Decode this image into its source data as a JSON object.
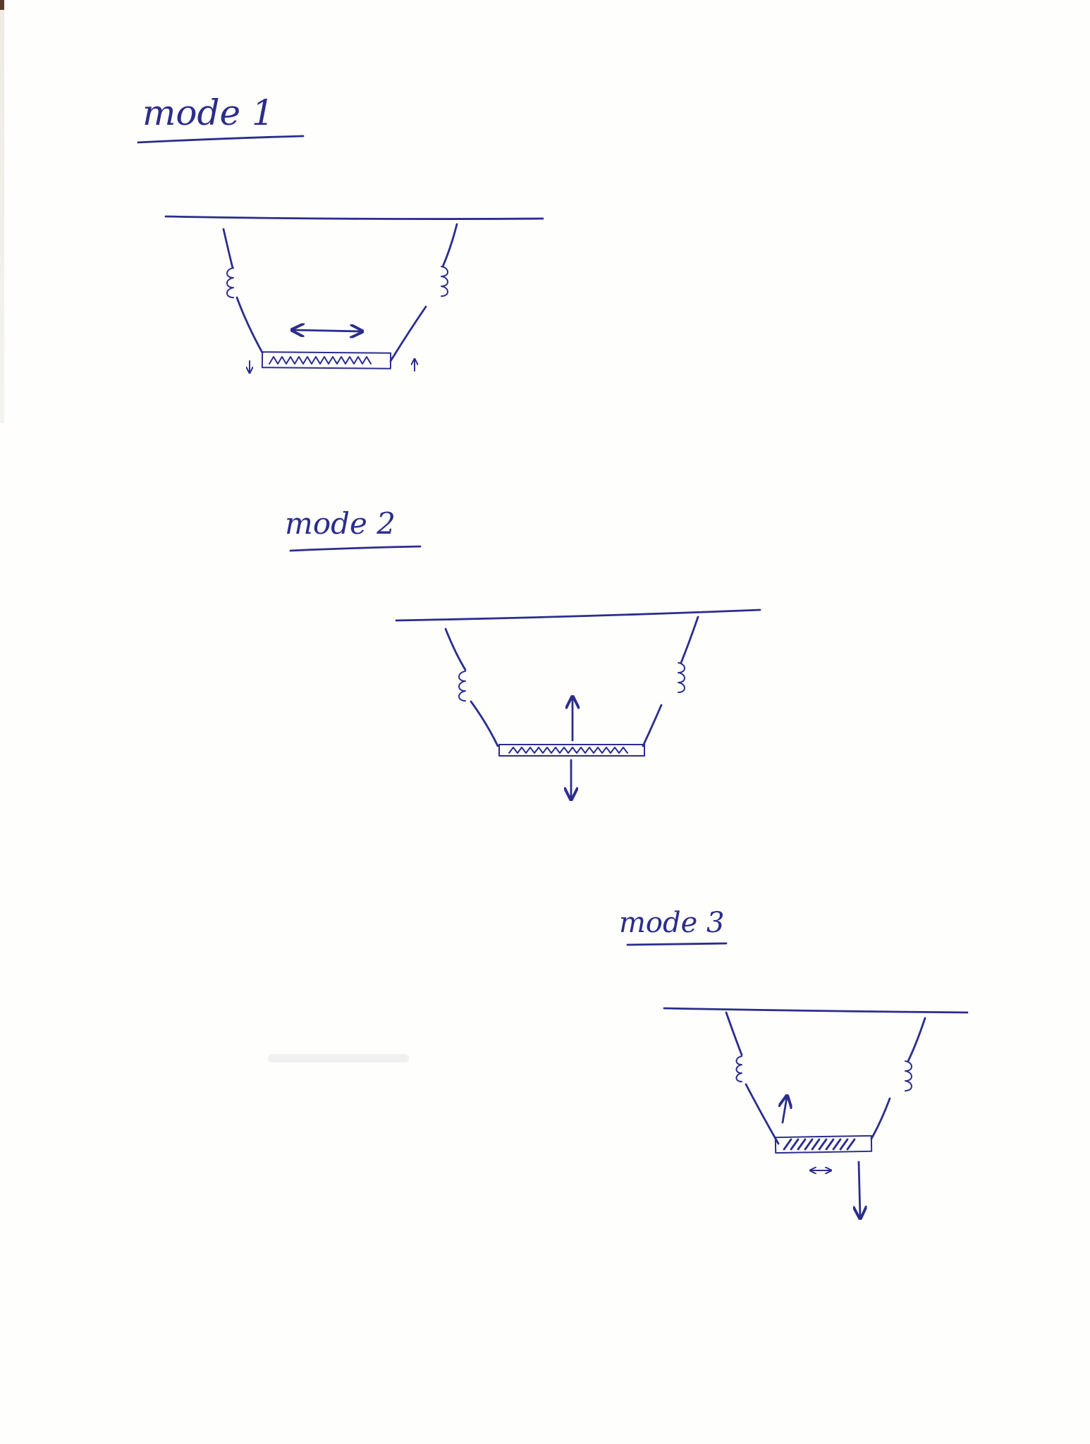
{
  "diagrams": [
    {
      "title": "mode 1",
      "motion": "horizontal"
    },
    {
      "title": "mode 2",
      "motion": "vertical"
    },
    {
      "title": "mode 3",
      "motion": "rocking"
    }
  ],
  "colors": {
    "ink": "#2b2d8c",
    "paper": "#fefefd"
  }
}
